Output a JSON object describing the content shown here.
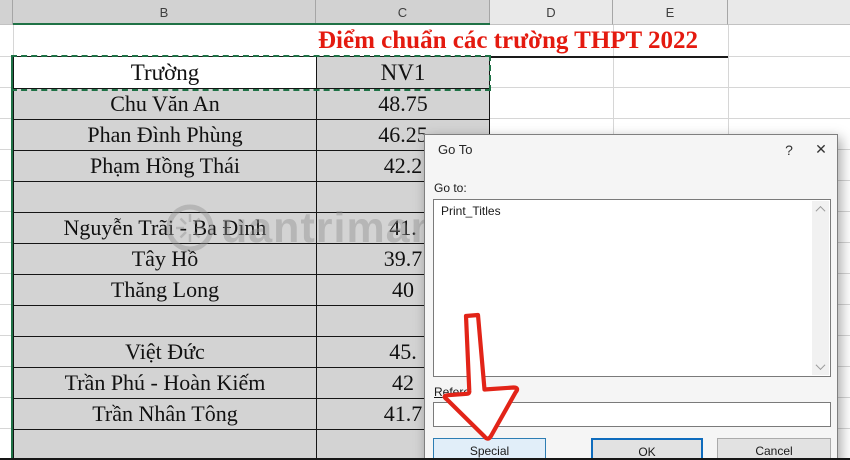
{
  "spreadsheet": {
    "column_headers": [
      "",
      "B",
      "C",
      "D",
      "E",
      ""
    ],
    "title": "Điểm chuẩn các trường THPT 2022",
    "table": {
      "header": {
        "school": "Trường",
        "score": "NV1"
      },
      "rows": [
        {
          "school": "Chu Văn An",
          "score": "48.75"
        },
        {
          "school": "Phan Đình Phùng",
          "score": "46.25"
        },
        {
          "school": "Phạm Hồng Thái",
          "score": "42.2"
        },
        {
          "school": "",
          "score": ""
        },
        {
          "school": "Nguyễn Trãi - Ba Đình",
          "score": "41."
        },
        {
          "school": "Tây Hồ",
          "score": "39.7"
        },
        {
          "school": "Thăng Long",
          "score": "40"
        },
        {
          "school": "",
          "score": ""
        },
        {
          "school": "Việt Đức",
          "score": "45."
        },
        {
          "school": "Trần Phú - Hoàn Kiếm",
          "score": "42"
        },
        {
          "school": "Trần Nhân Tông",
          "score": "41.7"
        },
        {
          "school": "",
          "score": ""
        }
      ]
    },
    "watermark": "uantrimang"
  },
  "dialog": {
    "title": "Go To",
    "help_label": "?",
    "close_label": "✕",
    "goto_label": "Go to:",
    "items": [
      "Print_Titles"
    ],
    "reference_label": "Reference:",
    "reference_value": "",
    "buttons": {
      "special": "Special",
      "ok": "OK",
      "cancel": "Cancel"
    }
  },
  "colors": {
    "excel_green": "#1f7246",
    "selection_gray": "#d3d3d3",
    "title_red": "#e41a0f",
    "arrow_red": "#e22418",
    "default_button_blue": "#0f6cbd"
  }
}
